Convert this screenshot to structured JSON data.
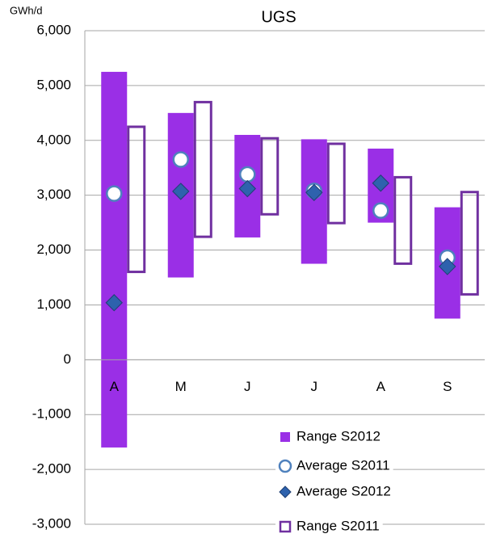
{
  "chart_data": {
    "type": "range",
    "title": "UGS",
    "y_label": "GWh/d",
    "categories": [
      "A",
      "M",
      "J",
      "J",
      "A",
      "S"
    ],
    "ylim": [
      -3000,
      6000
    ],
    "yticks": [
      {
        "value": -3000,
        "label": "-3,000"
      },
      {
        "value": -2000,
        "label": "-2,000"
      },
      {
        "value": -1000,
        "label": "-1,000"
      },
      0,
      {
        "value": 1000,
        "label": "1,000"
      },
      {
        "value": 2000,
        "label": "2,000"
      },
      {
        "value": 3000,
        "label": "3,000"
      },
      {
        "value": 4000,
        "label": "4,000"
      },
      {
        "value": 5000,
        "label": "5,000"
      },
      {
        "value": 6000,
        "label": "6,000"
      }
    ],
    "grid": true,
    "series": [
      {
        "name": "Range S2012",
        "kind": "range",
        "fill": true,
        "color": "#9a2fe6",
        "low": [
          -1600,
          1500,
          2230,
          1750,
          2500,
          750
        ],
        "high": [
          5250,
          4500,
          4100,
          4020,
          3850,
          2780
        ]
      },
      {
        "name": "Average S2011",
        "kind": "marker",
        "marker": "circle",
        "color": "#4f81bd",
        "values": [
          3030,
          3650,
          3380,
          3080,
          2720,
          1860
        ]
      },
      {
        "name": "Average S2012",
        "kind": "marker",
        "marker": "diamond",
        "color": "#2e62ad",
        "values": [
          1040,
          3070,
          3120,
          3050,
          3220,
          1700
        ]
      },
      {
        "name": "Range S2011",
        "kind": "range",
        "fill": false,
        "color": "#7030a0",
        "low": [
          1580,
          2220,
          2630,
          2470,
          1730,
          1170
        ],
        "high": [
          4270,
          4720,
          4060,
          3960,
          3350,
          3080
        ]
      }
    ]
  }
}
